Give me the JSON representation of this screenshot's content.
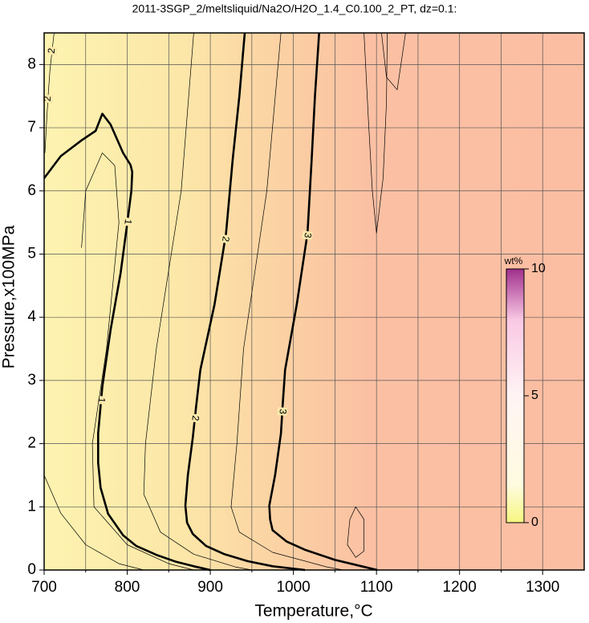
{
  "chart_data": {
    "type": "contour",
    "title": "2011-3SGP_2/meltsliquid/Na2O/H2O_1.4_C0.100_2_PT, dz=0.1:",
    "xlabel": "Temperature,°C",
    "ylabel": "Pressure,x100MPa",
    "xlim": [
      700,
      1350
    ],
    "ylim": [
      0,
      8.5
    ],
    "xticks": [
      700,
      800,
      900,
      1000,
      1100,
      1200,
      1300
    ],
    "yticks": [
      0,
      1,
      2,
      3,
      4,
      5,
      6,
      7,
      8
    ],
    "x_minor_grid": [
      750,
      850,
      950,
      1050,
      1150,
      1250
    ],
    "grid": true,
    "series": [
      {
        "level": 1,
        "bold": true,
        "labeled": true,
        "x": [
          700,
          720,
          745,
          762,
          770,
          780,
          795,
          804,
          806,
          805,
          800,
          792,
          780,
          770,
          765,
          765,
          768,
          777,
          795,
          811,
          835,
          859,
          880,
          900
        ],
        "y": [
          6.2,
          6.55,
          6.8,
          6.95,
          7.22,
          7.05,
          6.6,
          6.41,
          6.3,
          6.0,
          5.48,
          4.7,
          3.8,
          2.9,
          2.16,
          1.7,
          1.3,
          0.89,
          0.55,
          0.38,
          0.24,
          0.13,
          0.06,
          0
        ]
      },
      {
        "level": 2,
        "bold": true,
        "labeled": true,
        "x": [
          941.5,
          935,
          927,
          919,
          905,
          888,
          883,
          879,
          873,
          870,
          872,
          879,
          895,
          917,
          945,
          975,
          1014
        ],
        "y": [
          8.5,
          7.5,
          6.5,
          5.33,
          4.2,
          3.17,
          2.6,
          2.1,
          1.5,
          1.02,
          0.75,
          0.57,
          0.38,
          0.25,
          0.14,
          0.06,
          0
        ]
      },
      {
        "level": 3,
        "bold": true,
        "labeled": true,
        "x": [
          1031,
          1026,
          1022,
          1017,
          1004,
          990,
          987,
          985,
          978,
          971,
          972,
          975,
          992,
          1014,
          1050,
          1082,
          1101
        ],
        "y": [
          8.5,
          7.5,
          6.5,
          5.33,
          4.2,
          3.17,
          2.6,
          2.16,
          1.5,
          1.02,
          0.8,
          0.63,
          0.45,
          0.32,
          0.16,
          0.06,
          0
        ]
      },
      {
        "level": 2,
        "bold": false,
        "labeled": true,
        "x": [
          701,
          703,
          705,
          707,
          709,
          712
        ],
        "y": [
          6.6,
          7.1,
          7.55,
          7.9,
          8.15,
          8.5
        ]
      },
      {
        "level": 0.5,
        "bold": false,
        "labeled": false,
        "x": [
          700,
          720,
          750,
          790,
          820
        ],
        "y": [
          1.5,
          0.9,
          0.4,
          0.1,
          0
        ]
      },
      {
        "level": 0.8,
        "bold": false,
        "labeled": false,
        "x": [
          745,
          750,
          770,
          785,
          790,
          775,
          758,
          760,
          800,
          850,
          880
        ],
        "y": [
          5.1,
          6.0,
          6.6,
          6.4,
          5.5,
          3.5,
          2.0,
          1.0,
          0.4,
          0.1,
          0
        ]
      },
      {
        "level": 1.5,
        "bold": false,
        "labeled": false,
        "x": [
          880,
          865,
          835,
          822,
          820,
          840,
          880,
          930,
          950
        ],
        "y": [
          8.5,
          6.0,
          3.5,
          2.0,
          1.2,
          0.6,
          0.25,
          0.05,
          0
        ]
      },
      {
        "level": 2.5,
        "bold": false,
        "labeled": false,
        "x": [
          985,
          968,
          940,
          932,
          925,
          935,
          975,
          1040,
          1060
        ],
        "y": [
          8.5,
          6.0,
          3.5,
          2.0,
          1.0,
          0.6,
          0.28,
          0.05,
          0
        ]
      },
      {
        "level": 3.2,
        "bold": false,
        "labeled": false,
        "x": [
          1085,
          1090,
          1095,
          1100,
          1108,
          1112,
          1113
        ],
        "y": [
          8.5,
          7.2,
          6.0,
          5.33,
          6.2,
          7.4,
          8.5
        ]
      },
      {
        "level": 3.3,
        "bold": false,
        "labeled": false,
        "x": [
          1106,
          1112,
          1125,
          1135
        ],
        "y": [
          8.5,
          7.8,
          7.6,
          8.5
        ]
      },
      {
        "level": 3.4,
        "bold": false,
        "labeled": false,
        "x": [
          1075,
          1085,
          1085,
          1075,
          1065,
          1068,
          1075
        ],
        "y": [
          1.0,
          0.8,
          0.3,
          0.2,
          0.4,
          0.8,
          1.0
        ]
      }
    ],
    "colorbar": {
      "label": "wt%",
      "lim": [
        0,
        10
      ],
      "ticks": [
        0,
        5,
        10
      ]
    }
  }
}
